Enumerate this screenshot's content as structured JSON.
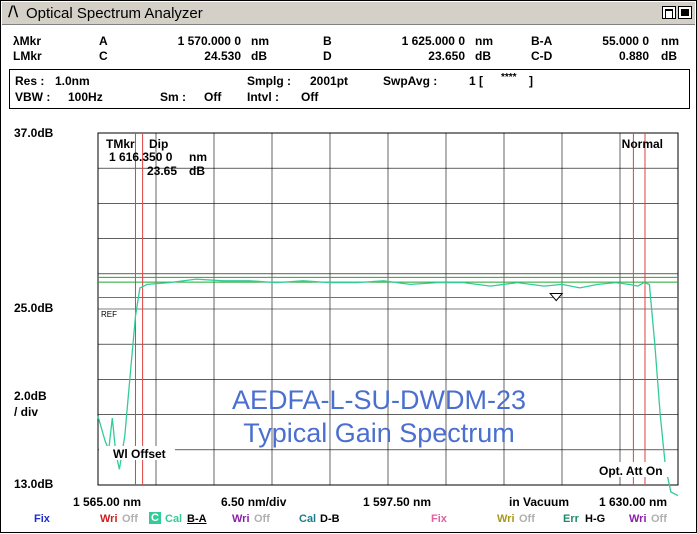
{
  "window": {
    "title": "Optical Spectrum Analyzer",
    "logo": "/\\"
  },
  "markers": {
    "lambda_label": "λMkr",
    "lmkr_label": "LMkr",
    "A_label": "A",
    "A_value": "1 570.000 0",
    "A_unit": "nm",
    "B_label": "B",
    "B_value": "1 625.000 0",
    "B_unit": "nm",
    "BA_label": "B-A",
    "BA_value": "55.000 0",
    "BA_unit": "nm",
    "C_label": "C",
    "C_value": "24.530",
    "C_unit": "dB",
    "D_label": "D",
    "D_value": "23.650",
    "D_unit": "dB",
    "CD_label": "C-D",
    "CD_value": "0.880",
    "CD_unit": "dB"
  },
  "settings": {
    "res_label": "Res :",
    "res_value": "1.0nm",
    "vbw_label": "VBW :",
    "vbw_value": "100Hz",
    "smplg_label": "Smplg :",
    "smplg_value": "2001pt",
    "sm_label": "Sm :",
    "sm_value": "Off",
    "intvl_label": "Intvl :",
    "intvl_value": "Off",
    "swpavg_label": "SwpAvg :",
    "swpavg_value": "1 [",
    "swpavg_stars": "****",
    "swpavg_close": "]"
  },
  "plot": {
    "y_top": "37.0dB",
    "y_ref": "25.0dB",
    "y_div": "2.0dB",
    "y_div_unit": "/ div",
    "y_bottom": "13.0dB",
    "tmkr_label": "TMkr",
    "dip_label": "Dip",
    "tmkr_value": "1 616.350 0",
    "tmkr_unit": "nm",
    "dip_value": "23.65",
    "dip_unit": "dB",
    "mode": "Normal",
    "ref_label": "REF",
    "wl_offset": "Wl Offset",
    "att": "Opt. Att On",
    "overlay_line1": "AEDFA-L-SU-DWDM-23",
    "overlay_line2": "Typical Gain Spectrum",
    "x_start": "1 565.00 nm",
    "x_div": "6.50 nm/div",
    "x_center": "1 597.50 nm",
    "x_medium": "in Vacuum",
    "x_stop": "1 630.00 nm"
  },
  "chart_data": {
    "type": "line",
    "xlabel": "",
    "ylabel": "",
    "xlim": [
      1565.0,
      1630.0
    ],
    "ylim": [
      13.0,
      33.0
    ],
    "x_ticks_printed": [
      "1 565.00 nm",
      "1 597.50 nm",
      "1 630.00 nm"
    ],
    "series": [
      {
        "x": [
          1565.0,
          1565.4,
          1565.8,
          1566.2,
          1566.6,
          1567.0,
          1567.4,
          1568.0,
          1568.6,
          1569.2,
          1569.7,
          1570.5,
          1573.0,
          1576.0,
          1579.0,
          1582.0,
          1585.0,
          1588.0,
          1591.0,
          1594.0,
          1597.0,
          1600.0,
          1603.0,
          1606.0,
          1609.0,
          1612.0,
          1615.0,
          1617.0,
          1619.0,
          1621.0,
          1623.0,
          1624.5,
          1625.5,
          1626.2,
          1626.8,
          1627.4,
          1628.0,
          1628.6,
          1629.2,
          1630.0
        ],
        "y": [
          16.9,
          16.2,
          15.5,
          15.0,
          16.8,
          14.8,
          13.9,
          15.8,
          19.2,
          22.6,
          24.2,
          24.4,
          24.5,
          24.7,
          24.6,
          24.6,
          24.5,
          24.6,
          24.5,
          24.5,
          24.6,
          24.4,
          24.5,
          24.5,
          24.3,
          24.5,
          24.3,
          24.4,
          24.2,
          24.4,
          24.5,
          24.4,
          24.3,
          24.5,
          24.4,
          21.0,
          17.0,
          14.0,
          12.6,
          12.4
        ]
      }
    ],
    "reference_levels_db": [
      24.8,
      24.53,
      23.65
    ],
    "marker_lines_nm": [
      1569.2,
      1570.0,
      1625.0,
      1626.3
    ],
    "marker_dip": {
      "x": 1616.35,
      "y": 23.65
    }
  },
  "footer": {
    "fix1": "Fix",
    "wri1": "Wri",
    "wri1_off": "Off",
    "cal_box": "C",
    "cal1": "Cal",
    "cal1_trace": "B-A",
    "wri2": "Wri",
    "wri2_off": "Off",
    "cal2": "Cal",
    "cal2_trace": "D-B",
    "fix2": "Fix",
    "wri3": "Wri",
    "wri3_off": "Off",
    "err": "Err",
    "err_trace": "H-G",
    "wri4": "Wri",
    "wri4_off": "Off"
  },
  "colors": {
    "trace": "#33cc99",
    "marker_line": "#e04040",
    "ref_line": "#22a832",
    "overlay_text": "#4a6fcf",
    "grid": "#000000"
  }
}
